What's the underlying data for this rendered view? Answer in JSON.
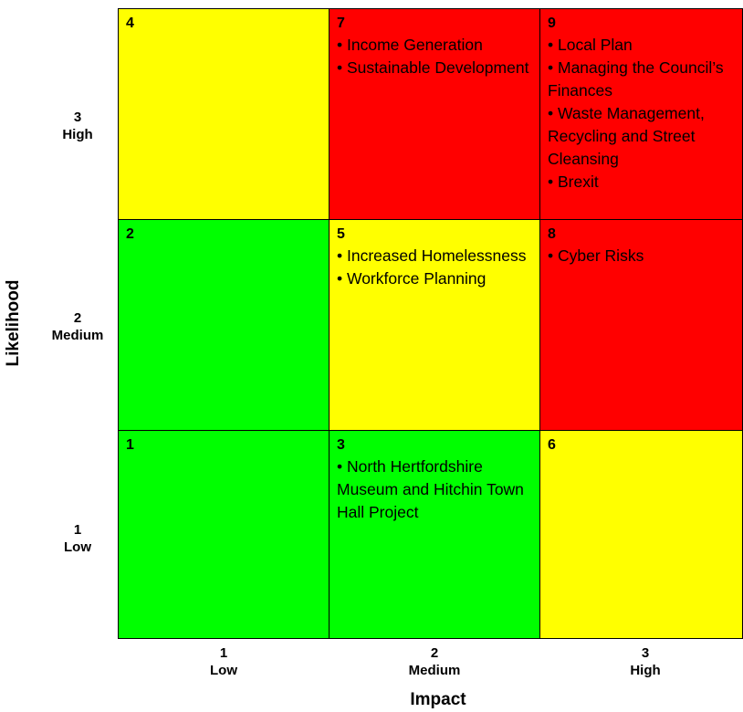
{
  "axes": {
    "y_title": "Likelihood",
    "x_title": "Impact",
    "rows": [
      {
        "num": "3",
        "label": "High"
      },
      {
        "num": "2",
        "label": "Medium"
      },
      {
        "num": "1",
        "label": "Low"
      }
    ],
    "cols": [
      {
        "num": "1",
        "label": "Low"
      },
      {
        "num": "2",
        "label": "Medium"
      },
      {
        "num": "3",
        "label": "High"
      }
    ]
  },
  "colors": {
    "green": "#00ff00",
    "yellow": "#ffff00",
    "red": "#ff0000"
  },
  "cells": [
    {
      "score": "4",
      "color": "#ffff00",
      "items": []
    },
    {
      "score": "7",
      "color": "#ff0000",
      "items": [
        "Income Generation",
        "Sustainable Development"
      ]
    },
    {
      "score": "9",
      "color": "#ff0000",
      "items": [
        "Local Plan",
        "Managing the Council’s Finances",
        "Waste Management, Recycling and Street Cleansing",
        "Brexit"
      ]
    },
    {
      "score": "2",
      "color": "#00ff00",
      "items": []
    },
    {
      "score": "5",
      "color": "#ffff00",
      "items": [
        "Increased Homelessness",
        "Workforce Planning"
      ]
    },
    {
      "score": "8",
      "color": "#ff0000",
      "items": [
        "Cyber Risks"
      ]
    },
    {
      "score": "1",
      "color": "#00ff00",
      "items": []
    },
    {
      "score": "3",
      "color": "#00ff00",
      "items": [
        "North Hertfordshire Museum and Hitchin Town Hall Project"
      ]
    },
    {
      "score": "6",
      "color": "#ffff00",
      "items": []
    }
  ]
}
